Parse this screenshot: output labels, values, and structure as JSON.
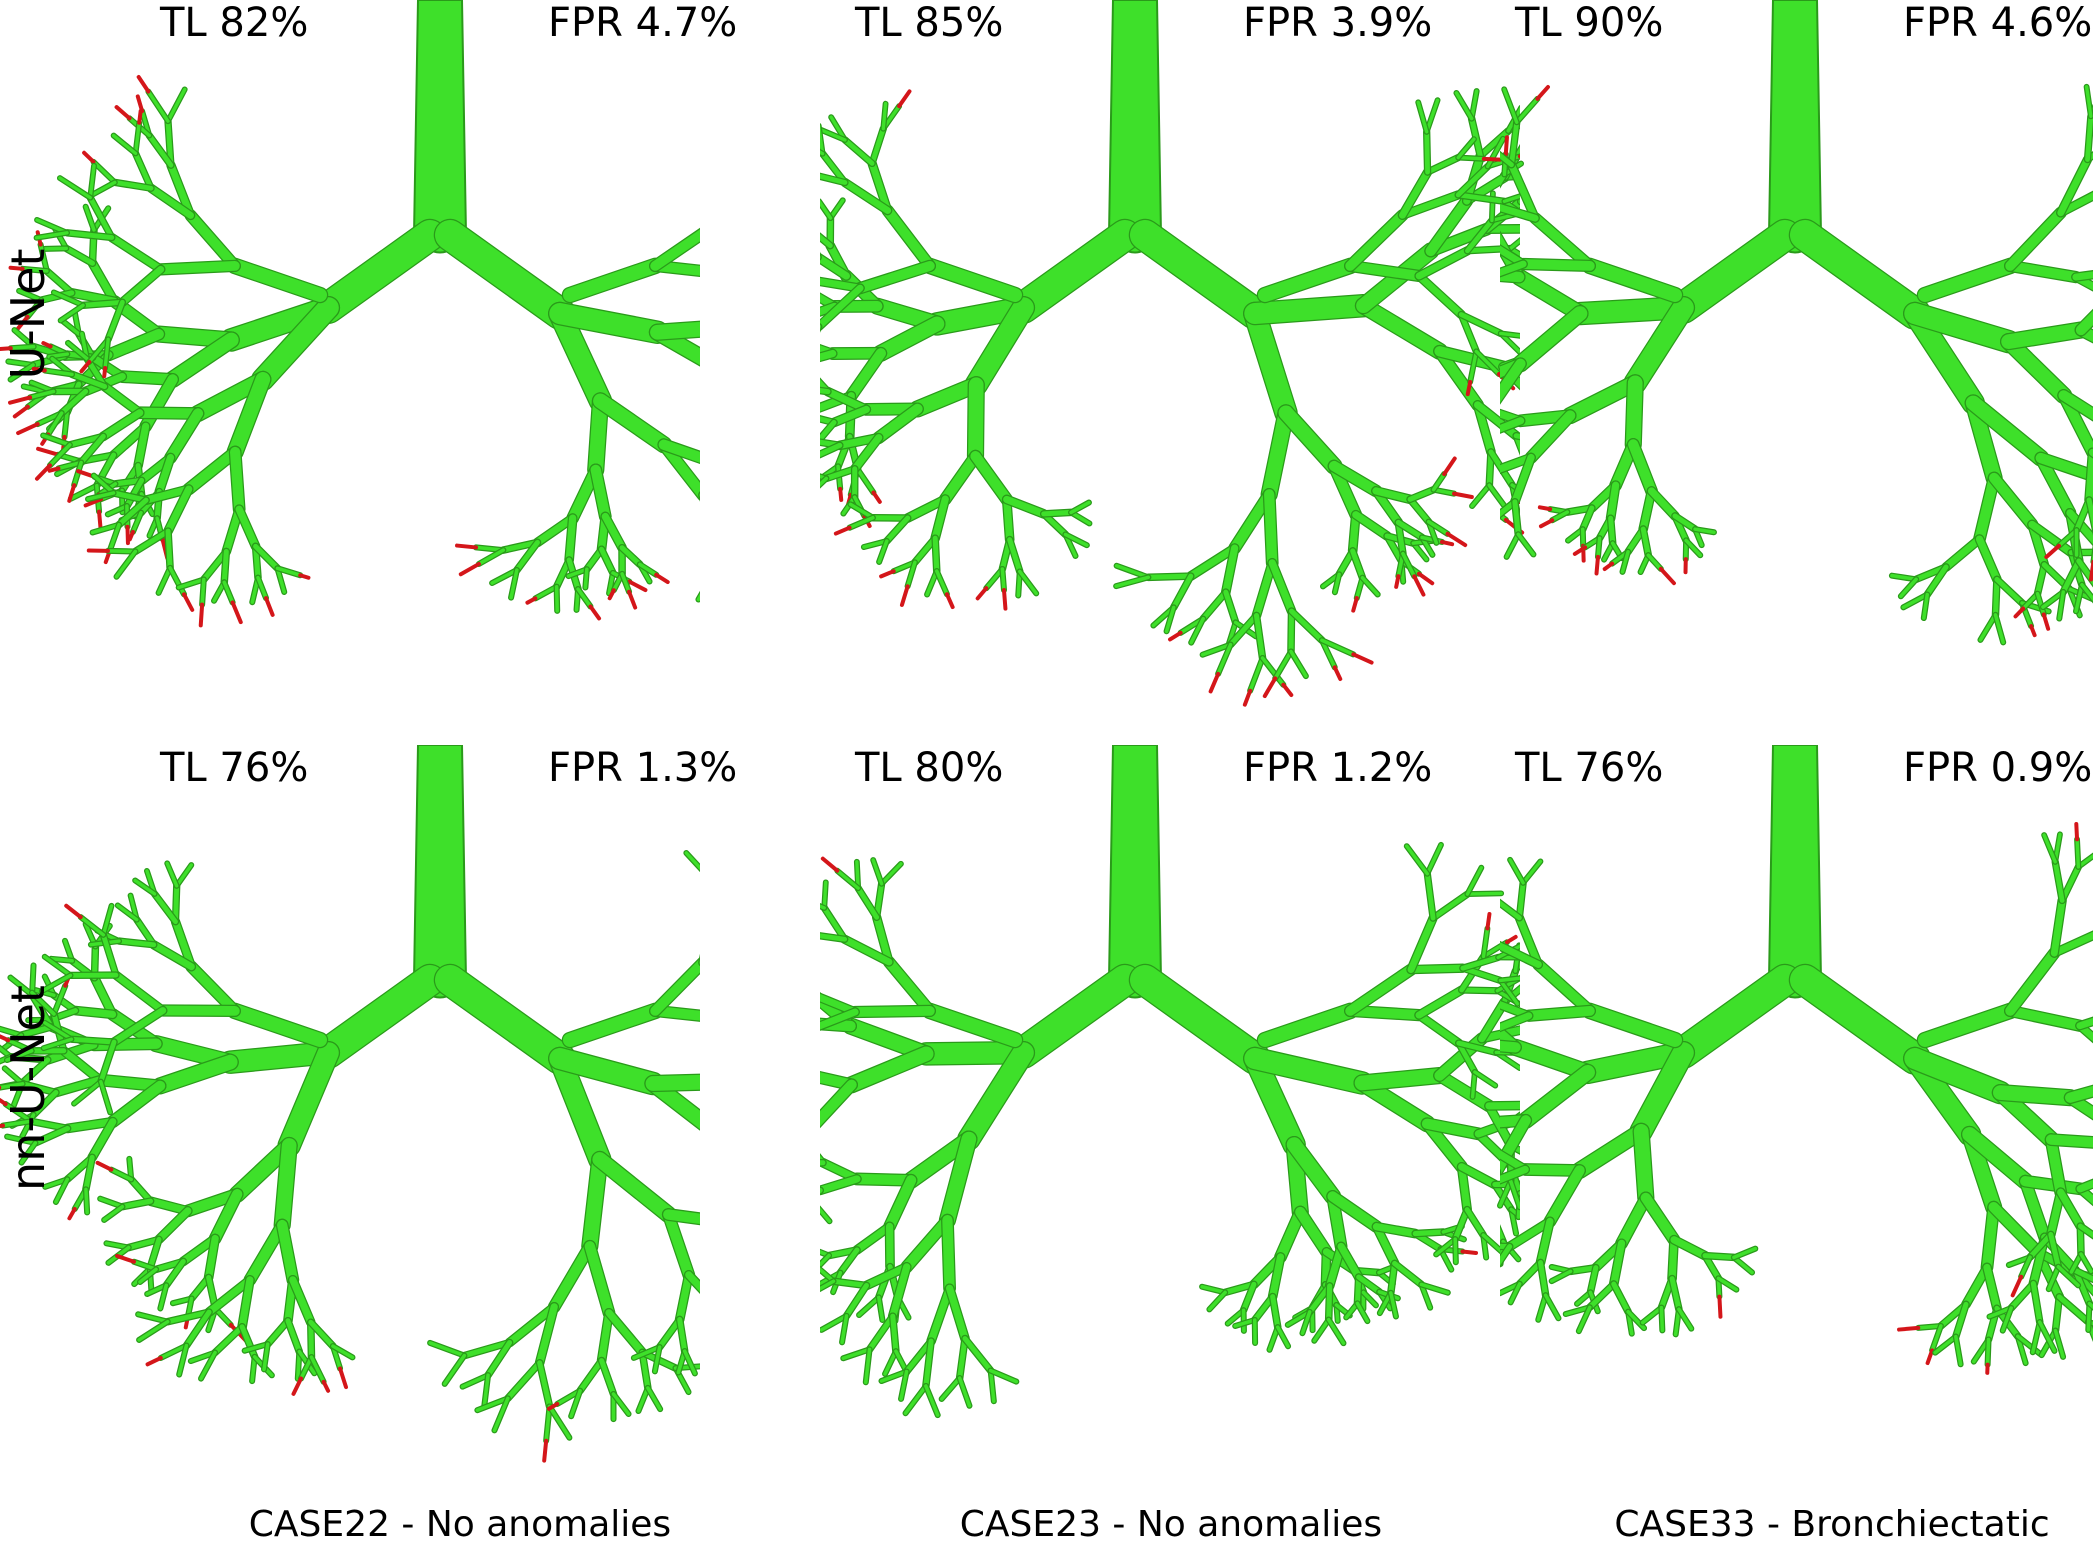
{
  "row_labels": [
    "U-Net",
    "nn-U-Net"
  ],
  "columns": [
    "CASE22 - No anomalies",
    "CASE23 - No anomalies",
    "CASE33 - Bronchiectatic"
  ],
  "panels": [
    [
      {
        "tl": "TL 82%",
        "fpr": "FPR 4.7%"
      },
      {
        "tl": "TL 85%",
        "fpr": "FPR 3.9%"
      },
      {
        "tl": "TL 90%",
        "fpr": "FPR 4.6%"
      }
    ],
    [
      {
        "tl": "TL 76%",
        "fpr": "FPR 1.3%"
      },
      {
        "tl": "TL 80%",
        "fpr": "FPR 1.2%"
      },
      {
        "tl": "TL 76%",
        "fpr": "FPR 0.9%"
      }
    ]
  ]
}
